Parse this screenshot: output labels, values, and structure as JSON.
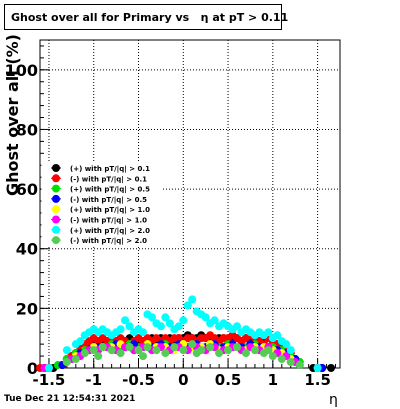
{
  "chart_data": {
    "type": "scatter",
    "title": "Ghost over all for Primary vs   η at pT > 0.11",
    "xlabel": "η",
    "ylabel": "Ghost  over all (%)",
    "timestamp": "Tue Dec 21 12:54:31 2021",
    "xlim": [
      -1.6,
      1.75
    ],
    "ylim": [
      0,
      110
    ],
    "x_ticks": [
      -1.5,
      -1,
      -0.5,
      0,
      0.5,
      1,
      1.5
    ],
    "x_tick_labels": [
      "-1.5",
      "-1",
      "-0.5",
      "0",
      "0.5",
      "1",
      "1.5"
    ],
    "y_ticks": [
      0,
      20,
      40,
      60,
      80,
      100
    ],
    "y_tick_labels": [
      "0",
      "20",
      "40",
      "60",
      "80",
      "100"
    ],
    "grid": true,
    "legend_position": "middle-left",
    "series": [
      {
        "name": "(+) with pT/|q| > 0.1",
        "color": "#000000",
        "x": [
          -1.55,
          -1.5,
          -1.45,
          -1.35,
          -1.3,
          -1.25,
          -1.2,
          -1.15,
          -1.1,
          -1.05,
          -1.0,
          -0.95,
          -0.9,
          -0.85,
          -0.8,
          -0.75,
          -0.7,
          -0.65,
          -0.6,
          -0.55,
          -0.5,
          -0.45,
          -0.4,
          -0.35,
          -0.3,
          -0.25,
          -0.2,
          -0.15,
          -0.1,
          -0.05,
          0.0,
          0.05,
          0.1,
          0.15,
          0.2,
          0.25,
          0.3,
          0.35,
          0.4,
          0.45,
          0.5,
          0.55,
          0.6,
          0.65,
          0.7,
          0.75,
          0.8,
          0.85,
          0.9,
          0.95,
          1.0,
          1.05,
          1.1,
          1.15,
          1.2,
          1.25,
          1.3,
          1.45,
          1.55,
          1.65
        ],
        "y": [
          0,
          0,
          0,
          1,
          3,
          4,
          5,
          6,
          7,
          8,
          9,
          9,
          8,
          9,
          10,
          9,
          8,
          9,
          10,
          9,
          8,
          9,
          9,
          10,
          9,
          10,
          9,
          10,
          9,
          10,
          10,
          11,
          10,
          10,
          11,
          10,
          10,
          9,
          10,
          10,
          9,
          10,
          10,
          9,
          10,
          9,
          10,
          9,
          9,
          10,
          9,
          8,
          7,
          6,
          4,
          3,
          1,
          0,
          0,
          0
        ]
      },
      {
        "name": "(-) with pT/|q| > 0.1",
        "color": "#ff0000",
        "x": [
          -1.6,
          -1.5,
          -1.35,
          -1.3,
          -1.25,
          -1.2,
          -1.15,
          -1.1,
          -1.05,
          -1.0,
          -0.95,
          -0.9,
          -0.85,
          -0.8,
          -0.75,
          -0.7,
          -0.65,
          -0.6,
          -0.55,
          -0.5,
          -0.45,
          -0.4,
          -0.35,
          -0.3,
          -0.25,
          -0.2,
          -0.15,
          -0.1,
          -0.05,
          0.0,
          0.05,
          0.1,
          0.15,
          0.2,
          0.25,
          0.3,
          0.35,
          0.4,
          0.45,
          0.5,
          0.55,
          0.6,
          0.65,
          0.7,
          0.75,
          0.8,
          0.85,
          0.9,
          0.95,
          1.0,
          1.05,
          1.1,
          1.15,
          1.2,
          1.3,
          1.5
        ],
        "y": [
          0,
          0,
          1,
          3,
          4,
          5,
          7,
          8,
          9,
          10,
          9,
          10,
          9,
          10,
          9,
          10,
          9,
          8,
          9,
          10,
          9,
          10,
          9,
          10,
          9,
          10,
          9,
          10,
          10,
          9,
          10,
          10,
          9,
          10,
          10,
          11,
          10,
          9,
          10,
          10,
          11,
          10,
          9,
          10,
          11,
          10,
          9,
          8,
          10,
          9,
          8,
          7,
          6,
          5,
          2,
          0
        ]
      },
      {
        "name": "(+) with pT/|q| > 0.5",
        "color": "#00e000",
        "x": [
          -1.4,
          -1.3,
          -1.2,
          -1.1,
          -1.0,
          -0.9,
          -0.8,
          -0.7,
          -0.6,
          -0.5,
          -0.4,
          -0.3,
          -0.2,
          -0.1,
          0.0,
          0.1,
          0.2,
          0.3,
          0.4,
          0.5,
          0.6,
          0.7,
          0.8,
          0.9,
          1.0,
          1.1,
          1.2,
          1.3
        ],
        "y": [
          1,
          3,
          5,
          6,
          7,
          7,
          8,
          7,
          8,
          7,
          8,
          7,
          8,
          7,
          8,
          8,
          7,
          8,
          7,
          8,
          7,
          7,
          8,
          7,
          7,
          6,
          4,
          2
        ]
      },
      {
        "name": "(-) with pT/|q| > 0.5",
        "color": "#0000ff",
        "x": [
          -1.55,
          -1.35,
          -1.25,
          -1.15,
          -1.05,
          -0.95,
          -0.85,
          -0.75,
          -0.65,
          -0.55,
          -0.45,
          -0.35,
          -0.25,
          -0.15,
          -0.05,
          0.05,
          0.15,
          0.25,
          0.35,
          0.45,
          0.55,
          0.65,
          0.75,
          0.85,
          0.95,
          1.05,
          1.15,
          1.25,
          1.55
        ],
        "y": [
          0,
          1,
          3,
          5,
          6,
          7,
          7,
          8,
          7,
          8,
          7,
          7,
          8,
          7,
          8,
          7,
          8,
          7,
          8,
          7,
          8,
          7,
          8,
          7,
          7,
          6,
          5,
          3,
          0
        ]
      },
      {
        "name": "(+) with pT/|q| > 1.0",
        "color": "#ffff00",
        "x": [
          -1.3,
          -1.2,
          -1.1,
          -1.0,
          -0.9,
          -0.8,
          -0.7,
          -0.6,
          -0.5,
          -0.4,
          -0.3,
          -0.2,
          -0.1,
          0.0,
          0.1,
          0.2,
          0.3,
          0.4,
          0.5,
          0.6,
          0.7,
          0.8,
          0.9,
          1.0,
          1.1,
          1.2
        ],
        "y": [
          2,
          4,
          5,
          7,
          7,
          7,
          8,
          7,
          6,
          8,
          7,
          7,
          6,
          8,
          7,
          7,
          8,
          6,
          7,
          7,
          6,
          7,
          7,
          6,
          5,
          3
        ]
      },
      {
        "name": "(-) with pT/|q| > 1.0",
        "color": "#ff00ff",
        "x": [
          -1.55,
          -1.25,
          -1.15,
          -1.05,
          -0.95,
          -0.85,
          -0.75,
          -0.65,
          -0.55,
          -0.45,
          -0.35,
          -0.25,
          -0.15,
          -0.05,
          0.05,
          0.15,
          0.25,
          0.35,
          0.45,
          0.55,
          0.65,
          0.75,
          0.85,
          0.95,
          1.05,
          1.15,
          1.25
        ],
        "y": [
          0,
          3,
          4,
          6,
          6,
          7,
          6,
          7,
          6,
          7,
          6,
          7,
          6,
          7,
          6,
          7,
          6,
          7,
          6,
          7,
          6,
          7,
          6,
          7,
          5,
          4,
          2
        ]
      },
      {
        "name": "(+) with pT/|q| > 2.0",
        "color": "#00ffff",
        "x": [
          -1.5,
          -1.3,
          -1.2,
          -1.15,
          -1.1,
          -1.05,
          -1.0,
          -0.95,
          -0.9,
          -0.85,
          -0.8,
          -0.75,
          -0.7,
          -0.65,
          -0.6,
          -0.55,
          -0.5,
          -0.45,
          -0.4,
          -0.35,
          -0.3,
          -0.25,
          -0.2,
          -0.15,
          -0.1,
          -0.05,
          0.0,
          0.05,
          0.1,
          0.15,
          0.2,
          0.25,
          0.3,
          0.35,
          0.4,
          0.45,
          0.5,
          0.55,
          0.6,
          0.65,
          0.7,
          0.75,
          0.8,
          0.85,
          0.9,
          0.95,
          1.0,
          1.05,
          1.1,
          1.15,
          1.2,
          1.5
        ],
        "y": [
          0,
          6,
          8,
          9,
          11,
          12,
          13,
          12,
          13,
          12,
          11,
          12,
          13,
          16,
          14,
          12,
          13,
          12,
          18,
          17,
          15,
          14,
          17,
          15,
          13,
          14,
          16,
          21,
          23,
          19,
          18,
          17,
          15,
          16,
          14,
          15,
          14,
          13,
          14,
          12,
          13,
          12,
          11,
          12,
          11,
          12,
          10,
          11,
          9,
          8,
          6,
          0
        ]
      },
      {
        "name": "(-) with pT/|q| > 2.0",
        "color": "#55cc55",
        "x": [
          -1.3,
          -1.2,
          -1.1,
          -1.0,
          -0.95,
          -0.9,
          -0.8,
          -0.7,
          -0.6,
          -0.5,
          -0.45,
          -0.4,
          -0.3,
          -0.2,
          -0.1,
          0.0,
          0.1,
          0.15,
          0.2,
          0.3,
          0.4,
          0.5,
          0.6,
          0.7,
          0.8,
          0.9,
          0.95,
          1.0,
          1.1,
          1.2,
          1.3
        ],
        "y": [
          2,
          3,
          5,
          6,
          4,
          7,
          6,
          5,
          7,
          6,
          4,
          7,
          6,
          5,
          7,
          6,
          8,
          5,
          6,
          7,
          5,
          6,
          7,
          5,
          6,
          5,
          6,
          4,
          3,
          2,
          1
        ]
      }
    ]
  }
}
